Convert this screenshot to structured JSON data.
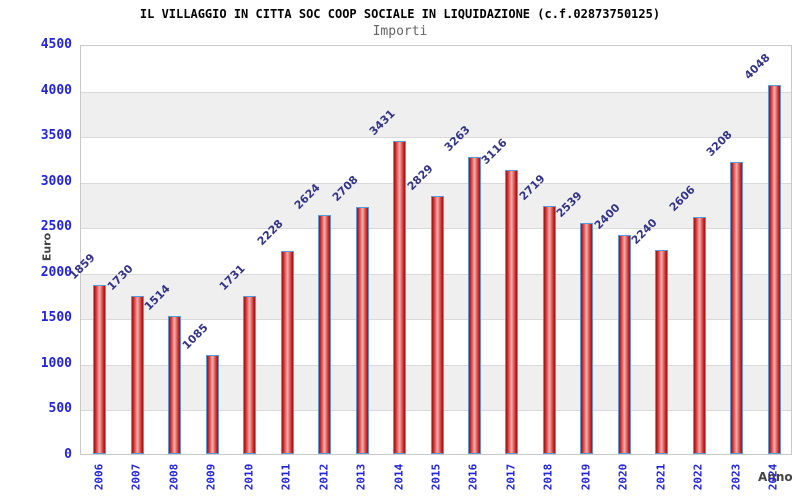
{
  "chart_data": {
    "type": "bar",
    "title": "IL VILLAGGIO IN CITTA SOC COOP SOCIALE IN LIQUIDAZIONE (c.f.02873750125)",
    "subtitle": "Importi",
    "xlabel": "Anno",
    "ylabel": "Euro",
    "categories": [
      "2006",
      "2007",
      "2008",
      "2009",
      "2010",
      "2011",
      "2012",
      "2013",
      "2014",
      "2015",
      "2016",
      "2017",
      "2018",
      "2019",
      "2020",
      "2021",
      "2022",
      "2023",
      "2024"
    ],
    "values": [
      1859,
      1730,
      1514,
      1085,
      1731,
      2228,
      2624,
      2708,
      3431,
      2829,
      3263,
      3116,
      2719,
      2539,
      2400,
      2240,
      2606,
      3208,
      4048
    ],
    "ylim": [
      0,
      4500
    ],
    "ytick_step": 500,
    "grid": true,
    "legend": "none",
    "colors": {
      "tick_label": "#2222dd",
      "value_label": "#333388",
      "axis_title": "#444444",
      "title": "#000000",
      "subtitle": "#666666",
      "band": "#efefef",
      "gridline": "#d9d9d9",
      "axis_border": "#c9c9c9",
      "bar_dark": "#9e1212",
      "bar_mid": "#cc2626",
      "bar_light": "#f5b0b0",
      "bar_border": "#5b9bd5"
    }
  }
}
